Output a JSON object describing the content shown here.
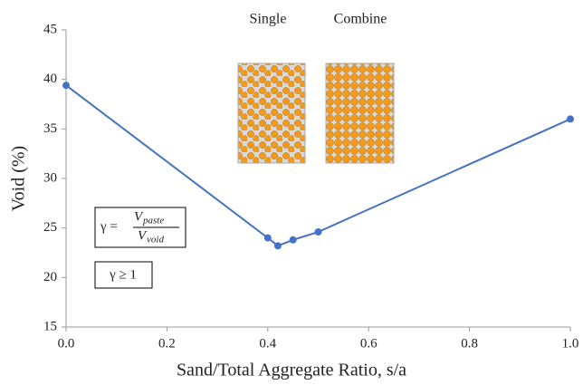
{
  "chart_data": {
    "type": "line",
    "annotations": [
      "Single",
      "Combine"
    ],
    "formula": {
      "lhs": "γ =",
      "numerator": "V",
      "numerator_sub": "paste",
      "denominator": "V",
      "denominator_sub": "void"
    },
    "condition": "γ ≥ 1",
    "x_label": "Sand/Total Aggregate  Ratio, s/a",
    "y_label": "Void (%)",
    "x": [
      0,
      0.4,
      0.42,
      0.45,
      0.5,
      1.0
    ],
    "series": [
      {
        "color": "#4472c4",
        "values": [
          39.4,
          24.0,
          23.2,
          23.8,
          24.6,
          36.0
        ]
      }
    ],
    "xlim": [
      0,
      1
    ],
    "xticks": [
      {
        "value": 0,
        "label": "0.0"
      },
      0.2,
      0.4,
      0.6,
      0.8,
      {
        "value": 1,
        "label": "1.0"
      }
    ],
    "ylim": [
      15,
      45
    ],
    "yticks": [
      15,
      20,
      25,
      30,
      35,
      40,
      45
    ],
    "grid": false
  }
}
